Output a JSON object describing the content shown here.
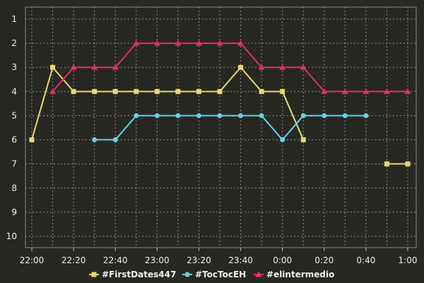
{
  "chart_data": {
    "type": "line",
    "title": "",
    "xlabel": "",
    "ylabel": "",
    "y_inverted": true,
    "ylim": [
      1,
      10
    ],
    "yticks": [
      "1",
      "2",
      "3",
      "4",
      "5",
      "6",
      "7",
      "8",
      "9",
      "10"
    ],
    "x_ticks": [
      "22:00",
      "22:20",
      "22:40",
      "23:00",
      "23:20",
      "23:40",
      "0:00",
      "0:20",
      "0:40",
      "1:00"
    ],
    "x": [
      "22:00",
      "22:10",
      "22:20",
      "22:30",
      "22:40",
      "22:50",
      "23:00",
      "23:10",
      "23:20",
      "23:30",
      "23:40",
      "23:50",
      "0:00",
      "0:10",
      "0:20",
      "0:30",
      "0:40",
      "0:50",
      "1:00"
    ],
    "grid": true,
    "legend": "bottom",
    "series": [
      {
        "name": "#FirstDates447",
        "color": "#e8d96a",
        "marker": "square",
        "values": [
          6,
          3,
          4,
          4,
          4,
          4,
          4,
          4,
          4,
          4,
          3,
          4,
          4,
          6,
          null,
          null,
          null,
          7,
          7
        ]
      },
      {
        "name": "#TocTocEH",
        "color": "#5ed4ec",
        "marker": "circle",
        "values": [
          null,
          null,
          null,
          6,
          6,
          5,
          5,
          5,
          5,
          5,
          5,
          5,
          6,
          5,
          5,
          5,
          5,
          null,
          null
        ]
      },
      {
        "name": "#elintermedio",
        "color": "#e52c6e",
        "marker": "triangle",
        "values": [
          null,
          4,
          3,
          3,
          3,
          2,
          2,
          2,
          2,
          2,
          2,
          3,
          3,
          3,
          4,
          4,
          4,
          4,
          4
        ]
      }
    ]
  }
}
